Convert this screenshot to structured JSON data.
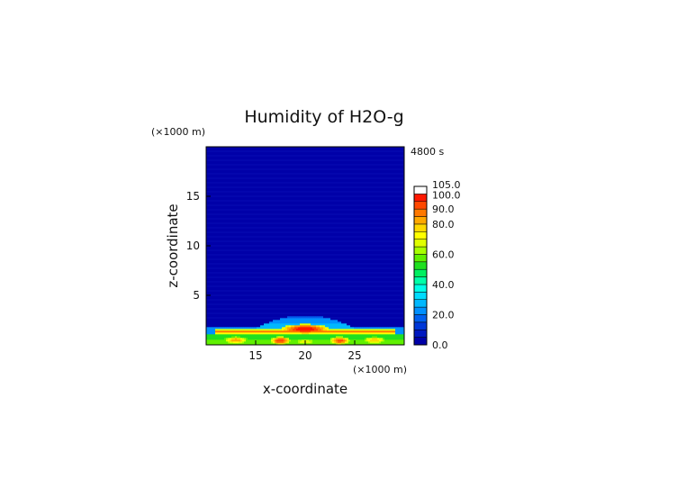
{
  "chart_data": {
    "type": "heatmap",
    "title": "Humidity of H2O-g",
    "xlabel": "x-coordinate",
    "ylabel": "z-coordinate",
    "x_unit": "(×1000 m)",
    "y_unit": "(×1000 m)",
    "time_label": "4800 s",
    "xlim": [
      10,
      30
    ],
    "ylim": [
      0,
      20
    ],
    "xticks": [
      15,
      20,
      25
    ],
    "yticks": [
      5,
      10,
      15
    ],
    "grid": false,
    "background_value": 2,
    "colorbar": {
      "levels": [
        0,
        5,
        10,
        15,
        20,
        25,
        30,
        35,
        40,
        45,
        50,
        55,
        60,
        65,
        70,
        75,
        80,
        85,
        90,
        95,
        100,
        105
      ],
      "colors": [
        "#0000a8",
        "#0018c0",
        "#0038d8",
        "#0060f0",
        "#0090ff",
        "#00b8ff",
        "#00dcff",
        "#00ffe8",
        "#00ffa8",
        "#00f060",
        "#20e020",
        "#60f000",
        "#a8ff00",
        "#e0ff00",
        "#ffff00",
        "#ffd800",
        "#ffa800",
        "#ff7800",
        "#ff4800",
        "#ff1800",
        "#ffffff"
      ],
      "tick_labels": [
        "0.0",
        "20.0",
        "40.0",
        "60.0",
        "80.0",
        "90.0",
        "100.0",
        "105.0"
      ],
      "tick_values": [
        0,
        20,
        40,
        60,
        80,
        90,
        100,
        105
      ]
    },
    "features": [
      {
        "kind": "layer",
        "z_top": 1.0,
        "value": 60
      },
      {
        "kind": "layer_edge",
        "z": 1.8,
        "value": 22
      },
      {
        "kind": "dome",
        "x_center": 20,
        "half_width": 7.5,
        "z_top": 3.0,
        "value": 45
      },
      {
        "kind": "band",
        "x_start": 11,
        "x_end": 29,
        "z": 1.35,
        "value": 88
      },
      {
        "kind": "blob",
        "x": 20,
        "z": 1.6,
        "rx": 2.5,
        "rz": 0.5,
        "value": 100
      },
      {
        "kind": "blob",
        "x": 17.5,
        "z": 0.45,
        "rx": 1.0,
        "rz": 0.4,
        "value": 95
      },
      {
        "kind": "blob",
        "x": 23.5,
        "z": 0.45,
        "rx": 1.0,
        "rz": 0.4,
        "value": 92
      },
      {
        "kind": "blob",
        "x": 20,
        "z": 0.35,
        "rx": 1.2,
        "rz": 0.35,
        "value": 70
      },
      {
        "kind": "blob",
        "x": 13,
        "z": 0.5,
        "rx": 1.2,
        "rz": 0.35,
        "value": 85
      },
      {
        "kind": "blob",
        "x": 27,
        "z": 0.5,
        "rx": 1.2,
        "rz": 0.35,
        "value": 80
      }
    ]
  }
}
